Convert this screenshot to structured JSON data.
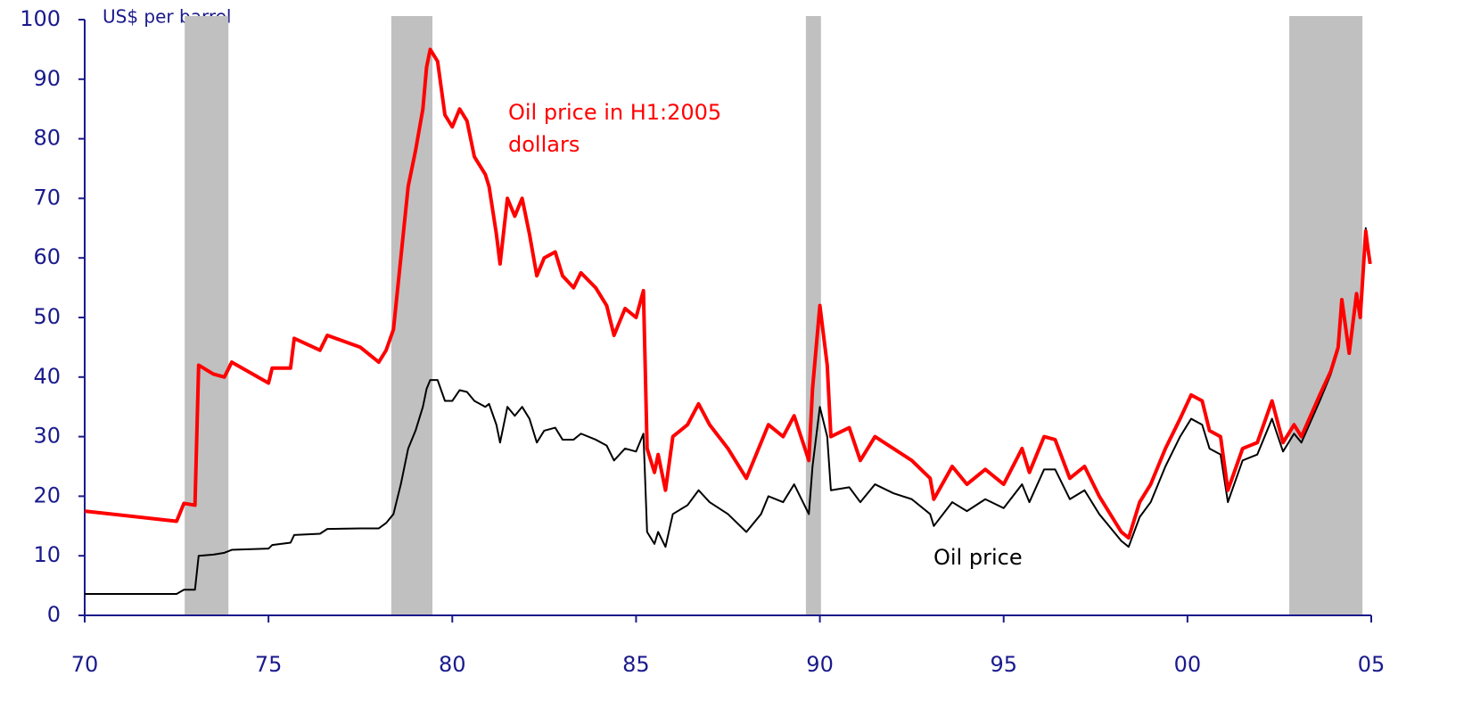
{
  "chart_data": {
    "type": "line",
    "ylabel": "US$ per barrel",
    "xlim": [
      1970,
      2005
    ],
    "xticks": [
      {
        "value": 1970,
        "label": "70"
      },
      {
        "value": 1975,
        "label": "75"
      },
      {
        "value": 1980,
        "label": "80"
      },
      {
        "value": 1985,
        "label": "85"
      },
      {
        "value": 1990,
        "label": "90"
      },
      {
        "value": 1995,
        "label": "95"
      },
      {
        "value": 2000,
        "label": "00"
      },
      {
        "value": 2005,
        "label": "05"
      }
    ],
    "ylim": [
      0,
      100
    ],
    "yticks": [
      0,
      10,
      20,
      30,
      40,
      50,
      60,
      70,
      80,
      90,
      100
    ],
    "grid": false,
    "shaded_periods": [
      [
        1972.72,
        1973.91
      ],
      [
        1978.34,
        1979.46
      ],
      [
        1989.62,
        1990.03
      ],
      [
        2002.77,
        2004.76
      ]
    ],
    "shade_color": "#c0c0c0",
    "x": [
      1970.0,
      1972.5,
      1972.7,
      1973.0,
      1973.1,
      1973.5,
      1973.8,
      1974.0,
      1975.0,
      1975.1,
      1975.6,
      1975.7,
      1976.4,
      1976.6,
      1977.5,
      1978.0,
      1978.2,
      1978.4,
      1978.6,
      1978.8,
      1979.0,
      1979.2,
      1979.3,
      1979.4,
      1979.6,
      1979.8,
      1980.0,
      1980.2,
      1980.4,
      1980.6,
      1980.9,
      1981.0,
      1981.2,
      1981.3,
      1981.5,
      1981.7,
      1981.9,
      1982.1,
      1982.3,
      1982.5,
      1982.8,
      1983.0,
      1983.3,
      1983.5,
      1983.9,
      1984.2,
      1984.4,
      1984.7,
      1985.0,
      1985.2,
      1985.3,
      1985.5,
      1985.6,
      1985.8,
      1986.0,
      1986.4,
      1986.7,
      1987.0,
      1987.5,
      1988.0,
      1988.4,
      1988.6,
      1989.0,
      1989.3,
      1989.7,
      1989.8,
      1990.0,
      1990.2,
      1990.3,
      1990.8,
      1991.1,
      1991.5,
      1992.0,
      1992.5,
      1993.0,
      1993.1,
      1993.6,
      1994.0,
      1994.5,
      1995.0,
      1995.5,
      1995.7,
      1996.1,
      1996.4,
      1996.8,
      1997.2,
      1997.6,
      1998.0,
      1998.2,
      1998.4,
      1998.7,
      1999.0,
      1999.4,
      1999.8,
      2000.1,
      2000.4,
      2000.6,
      2000.9,
      2001.1,
      2001.5,
      2001.9,
      2002.3,
      2002.6,
      2002.9,
      2003.1,
      2003.6,
      2003.9,
      2004.1,
      2004.2,
      2004.4,
      2004.6,
      2004.7,
      2004.85,
      2004.9,
      2004.97
    ],
    "series": [
      {
        "name": "Oil price in H1:2005 dollars",
        "color": "#ff0000",
        "width": 4,
        "values": [
          17.5,
          15.8,
          18.8,
          18.5,
          42,
          40.5,
          40,
          42.5,
          39,
          41.5,
          41.5,
          46.5,
          44.5,
          47,
          45,
          42.5,
          44.5,
          48,
          60,
          72,
          78,
          85,
          92,
          95,
          93,
          84,
          82,
          85,
          83,
          77,
          74,
          72,
          64,
          59,
          70,
          67,
          70,
          64,
          57,
          60,
          61,
          57,
          55,
          57.5,
          55,
          52,
          47,
          51.5,
          50,
          54.5,
          28,
          24,
          27,
          21,
          30,
          32,
          35.5,
          32,
          28,
          23,
          29,
          32,
          30,
          33.5,
          26,
          38,
          52,
          42,
          30,
          31.5,
          26,
          30,
          28,
          26,
          23,
          19.5,
          25,
          22,
          24.5,
          22,
          28,
          24,
          30,
          29.5,
          23,
          25,
          20,
          16,
          14,
          13,
          19,
          22,
          28,
          33,
          37,
          36,
          31,
          30,
          21,
          28,
          29,
          36,
          29,
          32,
          30,
          37,
          41,
          45,
          53,
          44,
          54,
          50,
          64.5,
          62,
          59
        ]
      },
      {
        "name": "Oil price",
        "color": "#000000",
        "width": 2,
        "values": [
          3.6,
          3.6,
          4.3,
          4.3,
          10,
          10.2,
          10.5,
          11,
          11.2,
          11.8,
          12.2,
          13.5,
          13.7,
          14.5,
          14.6,
          14.6,
          15.5,
          17,
          22,
          28,
          31,
          35,
          38,
          39.5,
          39.5,
          36,
          36,
          37.8,
          37.5,
          36,
          35,
          35.5,
          32,
          29,
          35,
          33.5,
          35,
          33,
          29,
          31,
          31.5,
          29.5,
          29.5,
          30.5,
          29.5,
          28.5,
          26,
          28,
          27.5,
          30.5,
          14,
          12,
          14,
          11.5,
          17,
          18.5,
          21,
          19,
          17,
          14,
          17,
          20,
          19,
          22,
          17,
          25,
          35,
          30,
          21,
          21.5,
          19,
          22,
          20.5,
          19.5,
          17,
          15,
          19,
          17.5,
          19.5,
          18,
          22,
          19,
          24.5,
          24.5,
          19.5,
          21,
          17,
          14,
          12.5,
          11.5,
          16.5,
          19,
          25,
          30,
          33,
          32,
          28,
          27,
          19,
          26,
          27,
          33,
          27.5,
          30.5,
          29,
          36,
          40.5,
          44.5,
          52.5,
          44,
          54,
          50,
          65,
          62,
          59
        ]
      }
    ]
  }
}
